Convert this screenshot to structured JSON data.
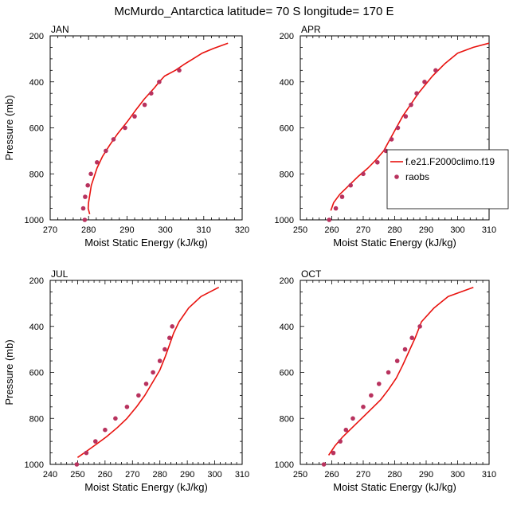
{
  "figure": {
    "title": "McMurdo_Antarctica  latitude= 70 S longitude= 170 E"
  },
  "colors": {
    "model_line": "#e8120e",
    "raobs_marker": "#b8325e",
    "axis": "#000000"
  },
  "legend": {
    "panel": "APR",
    "placement": "right-middle",
    "entries": [
      {
        "label": "f.e21.F2000climo.f19",
        "style": "line"
      },
      {
        "label": "raobs",
        "style": "marker"
      }
    ]
  },
  "chart_data": [
    {
      "type": "line",
      "panel": "JAN",
      "xlabel": "Moist Static Energy (kJ/kg)",
      "ylabel": "Pressure (mb)",
      "xlim": [
        270,
        320
      ],
      "xticks": [
        270,
        280,
        290,
        300,
        310,
        320
      ],
      "ylim": [
        200,
        1000
      ],
      "yticks": [
        200,
        400,
        600,
        800,
        1000
      ],
      "y_reversed": true,
      "series": [
        {
          "name": "f.e21.F2000climo.f19",
          "x": [
            280.3,
            279.9,
            280.0,
            280.7,
            282.2,
            283.6,
            285.5,
            287.6,
            290.0,
            292.2,
            294.5,
            297.2,
            298.4,
            299.8,
            302.6,
            304.8,
            307.2,
            309.6,
            312.5,
            316.3
          ],
          "y": [
            975,
            950,
            925,
            850,
            775,
            725,
            675,
            625,
            575,
            525,
            475,
            425,
            400,
            375,
            350,
            325,
            300,
            275,
            255,
            232
          ]
        },
        {
          "name": "raobs",
          "x": [
            279.0,
            278.6,
            279.1,
            279.8,
            280.6,
            282.2,
            284.5,
            286.5,
            289.5,
            292.0,
            294.6,
            296.3,
            298.4,
            303.6
          ],
          "y": [
            1000,
            950,
            900,
            850,
            800,
            750,
            700,
            650,
            600,
            550,
            500,
            450,
            400,
            350
          ]
        }
      ]
    },
    {
      "type": "line",
      "panel": "APR",
      "xlabel": "Moist Static Energy (kJ/kg)",
      "ylabel": "",
      "xlim": [
        250,
        310
      ],
      "xticks": [
        250,
        260,
        270,
        280,
        290,
        300,
        310
      ],
      "ylim": [
        200,
        1000
      ],
      "yticks": [
        200,
        400,
        600,
        800,
        1000
      ],
      "y_reversed": true,
      "series": [
        {
          "name": "f.e21.F2000climo.f19",
          "x": [
            259.7,
            260.6,
            262.5,
            265.5,
            268.5,
            271.5,
            274.0,
            276.5,
            278.5,
            280.5,
            282.5,
            285.0,
            287.5,
            289.0,
            292.0,
            296.0,
            300.0,
            305.0,
            310.0
          ],
          "y": [
            960,
            925,
            890,
            850,
            810,
            775,
            740,
            700,
            650,
            600,
            550,
            500,
            450,
            425,
            375,
            320,
            275,
            250,
            232
          ]
        },
        {
          "name": "raobs",
          "x": [
            259.2,
            261.3,
            263.3,
            266.0,
            270.0,
            274.5,
            277.2,
            279.0,
            281.0,
            283.5,
            285.2,
            287.0,
            289.5,
            293.0
          ],
          "y": [
            1000,
            950,
            900,
            850,
            800,
            750,
            700,
            650,
            600,
            550,
            500,
            450,
            400,
            350
          ]
        }
      ]
    },
    {
      "type": "line",
      "panel": "JUL",
      "xlabel": "Moist Static Energy (kJ/kg)",
      "ylabel": "Pressure (mb)",
      "xlim": [
        240,
        310
      ],
      "xticks": [
        240,
        250,
        260,
        270,
        280,
        290,
        300,
        310
      ],
      "ylim": [
        200,
        1000
      ],
      "yticks": [
        200,
        400,
        600,
        800,
        1000
      ],
      "y_reversed": true,
      "series": [
        {
          "name": "f.e21.F2000climo.f19",
          "x": [
            250.0,
            253.0,
            256.5,
            260.5,
            264.5,
            268.0,
            271.5,
            274.5,
            277.5,
            280.0,
            282.0,
            283.5,
            285.0,
            287.0,
            290.5,
            295.0,
            301.5
          ],
          "y": [
            970,
            945,
            915,
            880,
            840,
            800,
            750,
            700,
            640,
            590,
            530,
            480,
            430,
            380,
            320,
            270,
            230
          ]
        },
        {
          "name": "raobs",
          "x": [
            249.7,
            253.2,
            256.5,
            260.0,
            263.8,
            268.0,
            272.2,
            275.0,
            277.5,
            280.0,
            281.8,
            283.5,
            284.5
          ],
          "y": [
            1000,
            950,
            900,
            850,
            800,
            750,
            700,
            650,
            600,
            550,
            500,
            450,
            400
          ]
        }
      ]
    },
    {
      "type": "line",
      "panel": "OCT",
      "xlabel": "Moist Static Energy (kJ/kg)",
      "ylabel": "",
      "xlim": [
        250,
        310
      ],
      "xticks": [
        250,
        260,
        270,
        280,
        290,
        300,
        310
      ],
      "ylim": [
        200,
        1000
      ],
      "yticks": [
        200,
        400,
        600,
        800,
        1000
      ],
      "y_reversed": true,
      "series": [
        {
          "name": "f.e21.F2000climo.f19",
          "x": [
            259.0,
            261.0,
            263.5,
            266.5,
            269.5,
            272.5,
            275.5,
            278.0,
            280.5,
            282.5,
            284.5,
            286.5,
            288.5,
            292.5,
            297.0,
            305.0
          ],
          "y": [
            960,
            920,
            880,
            840,
            800,
            760,
            720,
            675,
            625,
            570,
            510,
            450,
            380,
            320,
            270,
            230
          ]
        },
        {
          "name": "raobs",
          "x": [
            257.5,
            260.5,
            262.7,
            264.5,
            266.7,
            270.0,
            272.5,
            275.0,
            278.0,
            280.8,
            283.3,
            285.5,
            288.0
          ],
          "y": [
            1000,
            950,
            900,
            850,
            800,
            750,
            700,
            650,
            600,
            550,
            500,
            450,
            400
          ]
        }
      ]
    }
  ]
}
